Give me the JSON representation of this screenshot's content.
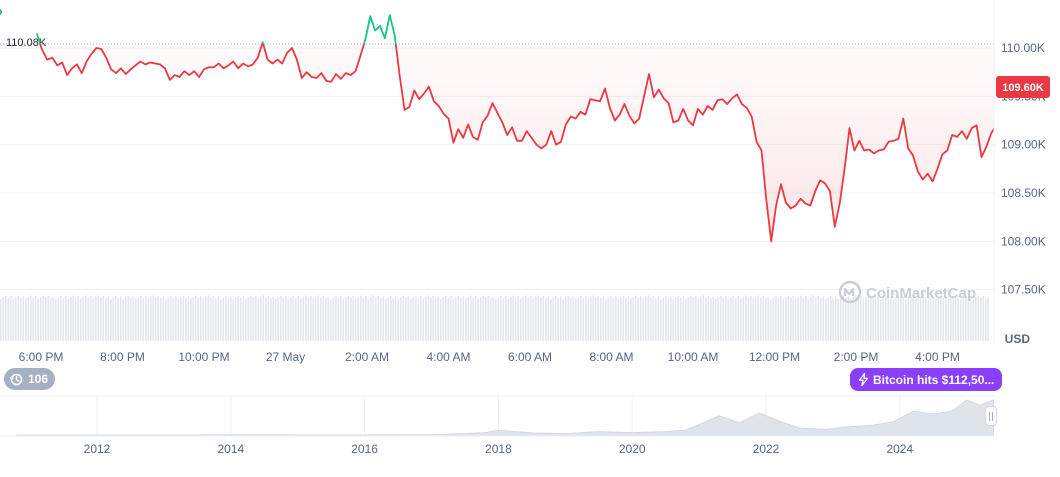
{
  "watermark": "CoinMarketCap",
  "currency": "USD",
  "refs_count": "106",
  "event_label": "Bitcoin hits $112,50...",
  "colors": {
    "line_down": "#ea3943",
    "line_up": "#16c784",
    "fill_down": "#ea3943",
    "grid": "#eff2f5",
    "event_pill": "#8a3ffc",
    "refs_pill": "#a6b0c3",
    "history_area": "#d8dde5"
  },
  "icons": {
    "refs": "history-icon",
    "event": "lightning-icon",
    "logo": "coinmarketcap-logo-icon"
  },
  "chart_data": [
    {
      "type": "line",
      "title": "",
      "currency": "USD",
      "ylim": [
        107500,
        110500
      ],
      "y_ticks": [
        107500,
        108000,
        108500,
        109000,
        109500,
        110000
      ],
      "y_tick_labels": [
        "107.50K",
        "108.00K",
        "108.50K",
        "109.00K",
        "109.50K",
        "110.00K"
      ],
      "x_ticks": [
        "6:00 PM",
        "8:00 PM",
        "10:00 PM",
        "27 May",
        "2:00 AM",
        "4:00 AM",
        "6:00 AM",
        "8:00 AM",
        "10:00 AM",
        "12:00 PM",
        "2:00 PM",
        "4:00 PM"
      ],
      "x_range_hours": [
        -7.1,
        17.6
      ],
      "baseline": {
        "value": 110080,
        "label": "110.08K"
      },
      "current": {
        "value": 109600,
        "label": "109.60K"
      },
      "grid": true,
      "series": [
        {
          "points": [
            [
              -7.1,
              110150
            ],
            [
              -6.98,
              109990
            ],
            [
              -6.85,
              109880
            ],
            [
              -6.72,
              109900
            ],
            [
              -6.6,
              109820
            ],
            [
              -6.48,
              109850
            ],
            [
              -6.36,
              109720
            ],
            [
              -6.24,
              109790
            ],
            [
              -6.12,
              109830
            ],
            [
              -6.0,
              109740
            ],
            [
              -5.88,
              109860
            ],
            [
              -5.76,
              109940
            ],
            [
              -5.64,
              110000
            ],
            [
              -5.52,
              109990
            ],
            [
              -5.4,
              109900
            ],
            [
              -5.28,
              109780
            ],
            [
              -5.16,
              109740
            ],
            [
              -5.04,
              109790
            ],
            [
              -4.92,
              109730
            ],
            [
              -4.8,
              109780
            ],
            [
              -4.68,
              109820
            ],
            [
              -4.56,
              109860
            ],
            [
              -4.44,
              109830
            ],
            [
              -4.32,
              109850
            ],
            [
              -4.2,
              109840
            ],
            [
              -4.08,
              109830
            ],
            [
              -3.96,
              109790
            ],
            [
              -3.84,
              109670
            ],
            [
              -3.72,
              109720
            ],
            [
              -3.6,
              109700
            ],
            [
              -3.48,
              109760
            ],
            [
              -3.36,
              109720
            ],
            [
              -3.24,
              109760
            ],
            [
              -3.12,
              109700
            ],
            [
              -3.0,
              109780
            ],
            [
              -2.88,
              109800
            ],
            [
              -2.76,
              109800
            ],
            [
              -2.64,
              109840
            ],
            [
              -2.52,
              109790
            ],
            [
              -2.4,
              109820
            ],
            [
              -2.28,
              109860
            ],
            [
              -2.16,
              109790
            ],
            [
              -2.04,
              109840
            ],
            [
              -1.92,
              109810
            ],
            [
              -1.8,
              109830
            ],
            [
              -1.68,
              109900
            ],
            [
              -1.56,
              110060
            ],
            [
              -1.44,
              109880
            ],
            [
              -1.32,
              109840
            ],
            [
              -1.2,
              109880
            ],
            [
              -1.08,
              109840
            ],
            [
              -0.96,
              109950
            ],
            [
              -0.84,
              110000
            ],
            [
              -0.72,
              109880
            ],
            [
              -0.6,
              109690
            ],
            [
              -0.48,
              109750
            ],
            [
              -0.36,
              109700
            ],
            [
              -0.24,
              109690
            ],
            [
              -0.12,
              109740
            ],
            [
              0.0,
              109660
            ],
            [
              0.12,
              109650
            ],
            [
              0.24,
              109730
            ],
            [
              0.36,
              109680
            ],
            [
              0.48,
              109740
            ],
            [
              0.6,
              109720
            ],
            [
              0.72,
              109760
            ],
            [
              0.84,
              109920
            ],
            [
              0.96,
              110090
            ],
            [
              1.08,
              110330
            ],
            [
              1.2,
              110180
            ],
            [
              1.32,
              110230
            ],
            [
              1.44,
              110100
            ],
            [
              1.56,
              110340
            ],
            [
              1.68,
              110130
            ],
            [
              1.8,
              109720
            ],
            [
              1.92,
              109360
            ],
            [
              2.04,
              109390
            ],
            [
              2.16,
              109560
            ],
            [
              2.28,
              109470
            ],
            [
              2.4,
              109530
            ],
            [
              2.52,
              109600
            ],
            [
              2.64,
              109450
            ],
            [
              2.76,
              109400
            ],
            [
              2.88,
              109320
            ],
            [
              3.0,
              109270
            ],
            [
              3.12,
              109020
            ],
            [
              3.24,
              109160
            ],
            [
              3.36,
              109070
            ],
            [
              3.48,
              109210
            ],
            [
              3.6,
              109080
            ],
            [
              3.72,
              109050
            ],
            [
              3.84,
              109230
            ],
            [
              3.96,
              109300
            ],
            [
              4.08,
              109430
            ],
            [
              4.2,
              109330
            ],
            [
              4.32,
              109230
            ],
            [
              4.44,
              109100
            ],
            [
              4.56,
              109180
            ],
            [
              4.68,
              109040
            ],
            [
              4.8,
              109040
            ],
            [
              4.92,
              109140
            ],
            [
              5.04,
              109070
            ],
            [
              5.16,
              109000
            ],
            [
              5.28,
              108960
            ],
            [
              5.4,
              109000
            ],
            [
              5.52,
              109140
            ],
            [
              5.64,
              109000
            ],
            [
              5.76,
              109030
            ],
            [
              5.88,
              109210
            ],
            [
              6.0,
              109290
            ],
            [
              6.12,
              109270
            ],
            [
              6.24,
              109340
            ],
            [
              6.36,
              109310
            ],
            [
              6.48,
              109470
            ],
            [
              6.6,
              109460
            ],
            [
              6.72,
              109450
            ],
            [
              6.84,
              109580
            ],
            [
              6.96,
              109380
            ],
            [
              7.08,
              109250
            ],
            [
              7.2,
              109310
            ],
            [
              7.32,
              109420
            ],
            [
              7.44,
              109300
            ],
            [
              7.56,
              109220
            ],
            [
              7.68,
              109270
            ],
            [
              7.8,
              109500
            ],
            [
              7.92,
              109730
            ],
            [
              8.04,
              109490
            ],
            [
              8.16,
              109570
            ],
            [
              8.28,
              109480
            ],
            [
              8.4,
              109430
            ],
            [
              8.52,
              109230
            ],
            [
              8.64,
              109250
            ],
            [
              8.76,
              109370
            ],
            [
              8.88,
              109250
            ],
            [
              9.0,
              109200
            ],
            [
              9.12,
              109370
            ],
            [
              9.24,
              109310
            ],
            [
              9.36,
              109400
            ],
            [
              9.48,
              109360
            ],
            [
              9.6,
              109460
            ],
            [
              9.72,
              109470
            ],
            [
              9.84,
              109420
            ],
            [
              9.96,
              109480
            ],
            [
              10.08,
              109520
            ],
            [
              10.2,
              109420
            ],
            [
              10.32,
              109380
            ],
            [
              10.44,
              109290
            ],
            [
              10.56,
              109030
            ],
            [
              10.68,
              108940
            ],
            [
              10.8,
              108420
            ],
            [
              10.92,
              108000
            ],
            [
              11.04,
              108370
            ],
            [
              11.16,
              108590
            ],
            [
              11.28,
              108400
            ],
            [
              11.4,
              108340
            ],
            [
              11.52,
              108370
            ],
            [
              11.64,
              108440
            ],
            [
              11.76,
              108390
            ],
            [
              11.88,
              108370
            ],
            [
              12.0,
              108520
            ],
            [
              12.12,
              108630
            ],
            [
              12.24,
              108600
            ],
            [
              12.36,
              108520
            ],
            [
              12.48,
              108150
            ],
            [
              12.6,
              108390
            ],
            [
              12.72,
              108750
            ],
            [
              12.84,
              109170
            ],
            [
              12.96,
              108940
            ],
            [
              13.08,
              109040
            ],
            [
              13.2,
              108940
            ],
            [
              13.32,
              108950
            ],
            [
              13.44,
              108910
            ],
            [
              13.56,
              108940
            ],
            [
              13.68,
              108950
            ],
            [
              13.8,
              109030
            ],
            [
              13.92,
              109040
            ],
            [
              14.04,
              109060
            ],
            [
              14.16,
              109270
            ],
            [
              14.28,
              108960
            ],
            [
              14.4,
              108890
            ],
            [
              14.52,
              108720
            ],
            [
              14.64,
              108640
            ],
            [
              14.76,
              108700
            ],
            [
              14.88,
              108620
            ],
            [
              15.0,
              108750
            ],
            [
              15.12,
              108900
            ],
            [
              15.24,
              108940
            ],
            [
              15.36,
              109100
            ],
            [
              15.48,
              109080
            ],
            [
              15.6,
              109140
            ],
            [
              15.72,
              109060
            ],
            [
              15.84,
              109170
            ],
            [
              15.96,
              109200
            ],
            [
              16.08,
              108870
            ],
            [
              16.2,
              108980
            ],
            [
              16.32,
              109120
            ],
            [
              16.44,
              109200
            ],
            [
              16.56,
              109210
            ],
            [
              16.68,
              109440
            ],
            [
              16.8,
              109500
            ],
            [
              16.92,
              109530
            ],
            [
              17.04,
              109730
            ],
            [
              17.16,
              109690
            ],
            [
              17.28,
              109700
            ],
            [
              17.4,
              109650
            ],
            [
              17.52,
              109600
            ]
          ]
        }
      ]
    },
    {
      "type": "area",
      "title": "",
      "x_ticks": [
        "2012",
        "2014",
        "2016",
        "2018",
        "2020",
        "2022",
        "2024"
      ],
      "x_range": [
        2010.8,
        2025.4
      ],
      "grid": true,
      "series": [
        {
          "points": [
            [
              2010.8,
              0
            ],
            [
              2012.0,
              0
            ],
            [
              2013.0,
              0
            ],
            [
              2014.0,
              0.5
            ],
            [
              2015.0,
              0.3
            ],
            [
              2016.0,
              0.4
            ],
            [
              2017.0,
              1.0
            ],
            [
              2017.8,
              7
            ],
            [
              2018.0,
              14
            ],
            [
              2018.5,
              6
            ],
            [
              2019.0,
              4
            ],
            [
              2019.5,
              10
            ],
            [
              2020.0,
              7
            ],
            [
              2020.5,
              10
            ],
            [
              2020.8,
              14
            ],
            [
              2021.0,
              30
            ],
            [
              2021.3,
              55
            ],
            [
              2021.6,
              35
            ],
            [
              2021.9,
              63
            ],
            [
              2022.2,
              40
            ],
            [
              2022.5,
              20
            ],
            [
              2022.9,
              16
            ],
            [
              2023.2,
              23
            ],
            [
              2023.6,
              28
            ],
            [
              2023.9,
              38
            ],
            [
              2024.2,
              68
            ],
            [
              2024.5,
              60
            ],
            [
              2024.8,
              70
            ],
            [
              2025.0,
              100
            ],
            [
              2025.2,
              85
            ],
            [
              2025.4,
              100
            ]
          ]
        }
      ]
    }
  ]
}
